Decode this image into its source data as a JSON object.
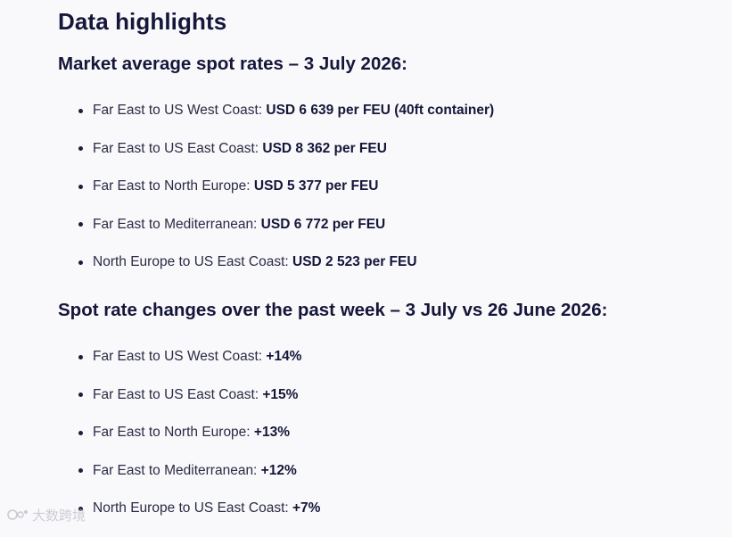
{
  "title": "Data highlights",
  "section1": {
    "heading": "Market average spot rates – 3 July 2026:",
    "items": [
      {
        "label": "Far East to US West Coast: ",
        "value": "USD 6 639 per FEU (40ft container)"
      },
      {
        "label": "Far East to US East Coast: ",
        "value": "USD 8 362 per FEU"
      },
      {
        "label": "Far East to North Europe: ",
        "value": "USD 5 377 per FEU"
      },
      {
        "label": "Far East to Mediterranean: ",
        "value": "USD 6 772 per FEU"
      },
      {
        "label": "North Europe to US East Coast: ",
        "value": "USD 2 523 per FEU"
      }
    ]
  },
  "section2": {
    "heading": "Spot rate changes over the past week – 3 July vs 26 June 2026:",
    "items": [
      {
        "label": "Far East to US West Coast: ",
        "value": "+14%"
      },
      {
        "label": "Far East to US East Coast: ",
        "value": "+15%"
      },
      {
        "label": "Far East to North Europe: ",
        "value": "+13%"
      },
      {
        "label": "Far East to Mediterranean: ",
        "value": "+12%"
      },
      {
        "label": "North Europe to US East Coast: ",
        "value": "+7%"
      }
    ]
  },
  "watermark": {
    "text": "大数跨境",
    "icon": "watermark-logo-icon"
  }
}
